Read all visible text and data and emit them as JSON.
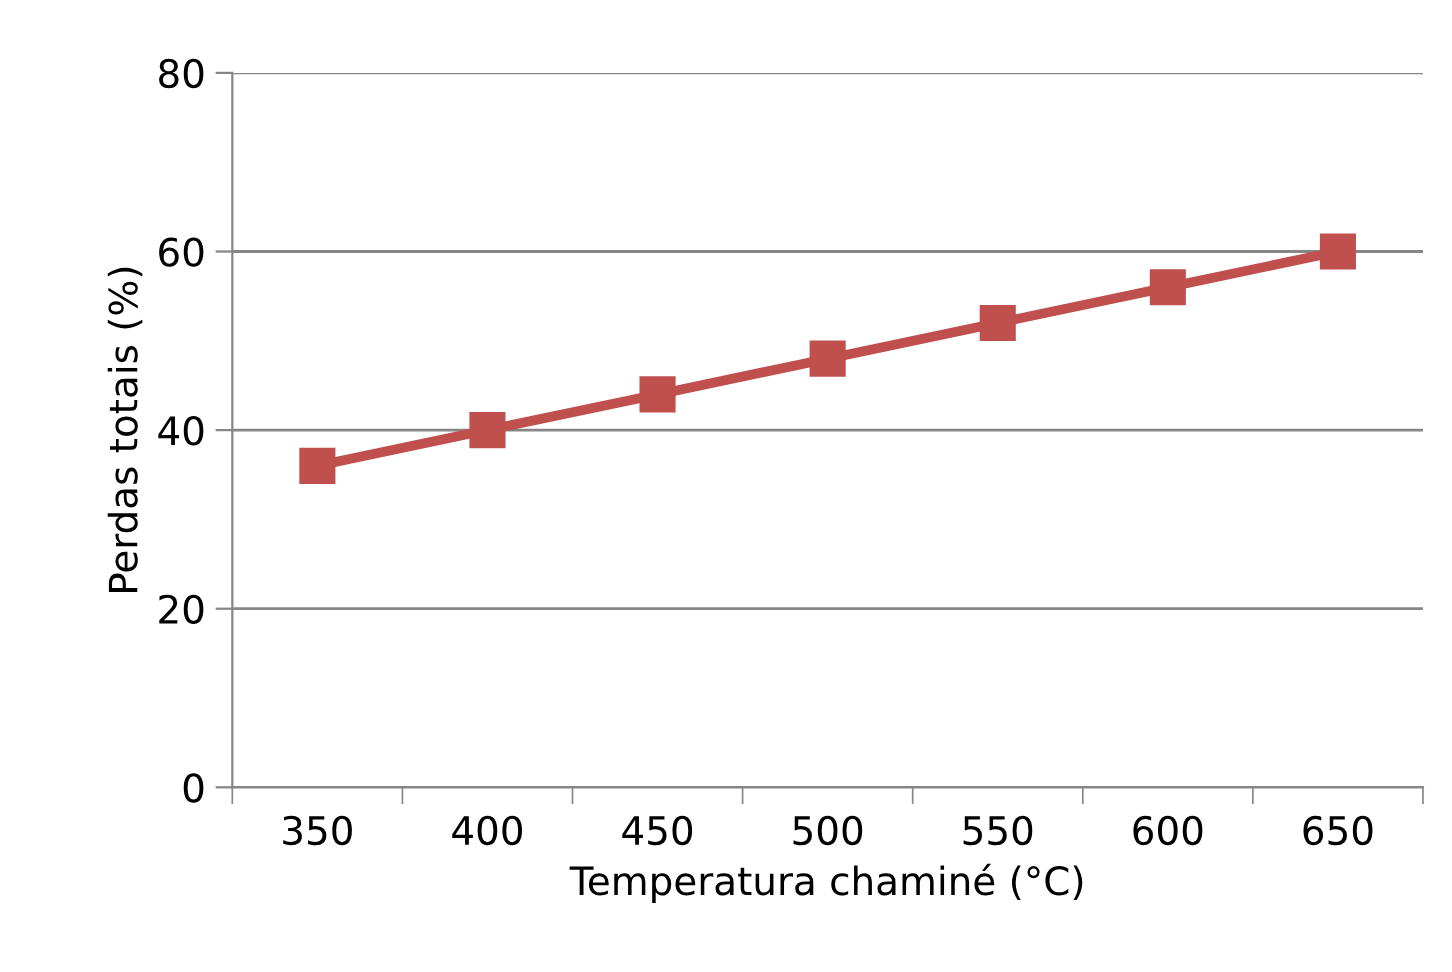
{
  "chart_data": {
    "type": "line",
    "xlabel": "Temperatura chaminé (°C)",
    "ylabel": "Perdas totais (%)",
    "categories": [
      "350",
      "400",
      "450",
      "500",
      "550",
      "600",
      "650"
    ],
    "series": [
      {
        "color": "#c0504d",
        "values": [
          36,
          40,
          44,
          48,
          52,
          56,
          60
        ]
      }
    ],
    "ylim": [
      0,
      80
    ],
    "yticks": [
      0,
      20,
      40,
      60,
      80
    ],
    "grid": "y",
    "marker": "square",
    "line_style": "solid",
    "legend": false
  }
}
